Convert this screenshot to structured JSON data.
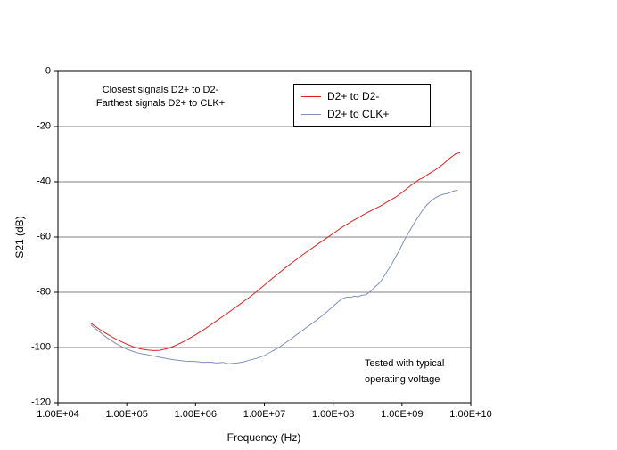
{
  "chart_data": {
    "type": "line",
    "title": "",
    "xlabel": "Frequency (Hz)",
    "ylabel": "S21 (dB)",
    "x_scale": "log",
    "xlim": [
      10000,
      10000000000
    ],
    "ylim": [
      -120,
      0
    ],
    "grid": "horizontal",
    "legend_position": "top-center-inside",
    "xticks": [
      {
        "label": "1.00E+04",
        "value": 10000
      },
      {
        "label": "1.00E+05",
        "value": 100000
      },
      {
        "label": "1.00E+06",
        "value": 1000000
      },
      {
        "label": "1.00E+07",
        "value": 10000000
      },
      {
        "label": "1.00E+08",
        "value": 100000000
      },
      {
        "label": "1.00E+09",
        "value": 1000000000
      },
      {
        "label": "1.00E+10",
        "value": 10000000000
      }
    ],
    "yticks": [
      {
        "label": "0",
        "value": 0
      },
      {
        "label": "-20",
        "value": -20
      },
      {
        "label": "-40",
        "value": -40
      },
      {
        "label": "-60",
        "value": -60
      },
      {
        "label": "-80",
        "value": -80
      },
      {
        "label": "-100",
        "value": -100
      },
      {
        "label": "-120",
        "value": -120
      }
    ],
    "series": [
      {
        "name": "D2+ to D2-",
        "color": "#e02020",
        "points": [
          [
            30000,
            -91.2
          ],
          [
            40000,
            -93.4
          ],
          [
            50000,
            -94.9
          ],
          [
            70000,
            -97.0
          ],
          [
            100000,
            -98.8
          ],
          [
            130000,
            -99.9
          ],
          [
            160000,
            -100.5
          ],
          [
            200000,
            -100.9
          ],
          [
            250000,
            -101.1
          ],
          [
            300000,
            -101.0
          ],
          [
            400000,
            -100.3
          ],
          [
            500000,
            -99.4
          ],
          [
            700000,
            -97.6
          ],
          [
            1000000,
            -95.4
          ],
          [
            1300000,
            -93.6
          ],
          [
            1600000,
            -92.1
          ],
          [
            2000000,
            -90.4
          ],
          [
            2500000,
            -88.7
          ],
          [
            3000000,
            -87.3
          ],
          [
            4000000,
            -85.1
          ],
          [
            5000000,
            -83.3
          ],
          [
            6000000,
            -81.9
          ],
          [
            8000000,
            -79.5
          ],
          [
            10000000,
            -77.4
          ],
          [
            13000000,
            -75.0
          ],
          [
            16000000,
            -73.2
          ],
          [
            20000000,
            -71.2
          ],
          [
            25000000,
            -69.4
          ],
          [
            30000000,
            -67.9
          ],
          [
            40000000,
            -65.6
          ],
          [
            50000000,
            -63.9
          ],
          [
            60000000,
            -62.5
          ],
          [
            80000000,
            -60.4
          ],
          [
            100000000,
            -58.7
          ],
          [
            130000000,
            -56.7
          ],
          [
            160000000,
            -55.3
          ],
          [
            200000000,
            -53.9
          ],
          [
            250000000,
            -52.5
          ],
          [
            300000000,
            -51.4
          ],
          [
            400000000,
            -49.8
          ],
          [
            500000000,
            -48.6
          ],
          [
            600000000,
            -47.4
          ],
          [
            800000000,
            -45.6
          ],
          [
            1000000000,
            -43.9
          ],
          [
            1200000000,
            -42.3
          ],
          [
            1400000000,
            -41.0
          ],
          [
            1600000000,
            -40.0
          ],
          [
            1800000000,
            -39.1
          ],
          [
            2000000000,
            -38.6
          ],
          [
            2300000000,
            -37.6
          ],
          [
            2600000000,
            -36.7
          ],
          [
            3000000000,
            -35.8
          ],
          [
            3500000000,
            -34.6
          ],
          [
            4000000000,
            -33.5
          ],
          [
            4500000000,
            -32.4
          ],
          [
            5000000000,
            -31.4
          ],
          [
            5500000000,
            -30.6
          ],
          [
            6000000000,
            -29.9
          ],
          [
            7000000000,
            -29.5
          ]
        ]
      },
      {
        "name": "D2+ to CLK+",
        "color": "#7f8fbf",
        "points": [
          [
            30000,
            -91.8
          ],
          [
            40000,
            -94.3
          ],
          [
            50000,
            -96.2
          ],
          [
            70000,
            -98.6
          ],
          [
            100000,
            -100.6
          ],
          [
            130000,
            -101.6
          ],
          [
            160000,
            -102.2
          ],
          [
            200000,
            -102.6
          ],
          [
            250000,
            -103.1
          ],
          [
            300000,
            -103.5
          ],
          [
            400000,
            -104.1
          ],
          [
            500000,
            -104.5
          ],
          [
            700000,
            -104.9
          ],
          [
            1000000,
            -105.1
          ],
          [
            1300000,
            -105.4
          ],
          [
            1600000,
            -105.3
          ],
          [
            2000000,
            -105.6
          ],
          [
            2500000,
            -105.4
          ],
          [
            3000000,
            -105.9
          ],
          [
            4000000,
            -105.6
          ],
          [
            5000000,
            -105.2
          ],
          [
            6000000,
            -104.6
          ],
          [
            8000000,
            -103.8
          ],
          [
            10000000,
            -102.9
          ],
          [
            13000000,
            -101.3
          ],
          [
            16000000,
            -100.1
          ],
          [
            20000000,
            -98.4
          ],
          [
            25000000,
            -96.7
          ],
          [
            30000000,
            -95.2
          ],
          [
            40000000,
            -92.9
          ],
          [
            50000000,
            -91.2
          ],
          [
            60000000,
            -89.7
          ],
          [
            80000000,
            -87.2
          ],
          [
            100000000,
            -85.1
          ],
          [
            120000000,
            -83.3
          ],
          [
            140000000,
            -82.2
          ],
          [
            160000000,
            -81.7
          ],
          [
            180000000,
            -81.9
          ],
          [
            200000000,
            -81.4
          ],
          [
            230000000,
            -81.6
          ],
          [
            260000000,
            -81.1
          ],
          [
            300000000,
            -80.9
          ],
          [
            350000000,
            -79.6
          ],
          [
            400000000,
            -78.2
          ],
          [
            450000000,
            -77.1
          ],
          [
            500000000,
            -75.8
          ],
          [
            550000000,
            -74.2
          ],
          [
            600000000,
            -72.6
          ],
          [
            700000000,
            -70.1
          ],
          [
            800000000,
            -67.4
          ],
          [
            900000000,
            -65.2
          ],
          [
            1000000000,
            -62.9
          ],
          [
            1100000000,
            -60.8
          ],
          [
            1300000000,
            -57.7
          ],
          [
            1500000000,
            -55.1
          ],
          [
            1700000000,
            -52.9
          ],
          [
            2000000000,
            -50.2
          ],
          [
            2300000000,
            -48.4
          ],
          [
            2600000000,
            -47.1
          ],
          [
            3000000000,
            -45.9
          ],
          [
            3500000000,
            -45.0
          ],
          [
            4000000000,
            -44.5
          ],
          [
            4500000000,
            -44.3
          ],
          [
            5000000000,
            -43.9
          ],
          [
            5500000000,
            -43.4
          ],
          [
            6500000000,
            -43.0
          ]
        ]
      }
    ]
  },
  "annotations": {
    "top_left": {
      "line1": "Closest signals D2+ to D2-",
      "line2": "Farthest signals D2+ to CLK+"
    },
    "bottom_right": {
      "line1": "Tested with typical",
      "line2": "operating voltage"
    }
  },
  "colors": {
    "frame": "#000000",
    "gridline": "#808080",
    "background": "#ffffff"
  }
}
